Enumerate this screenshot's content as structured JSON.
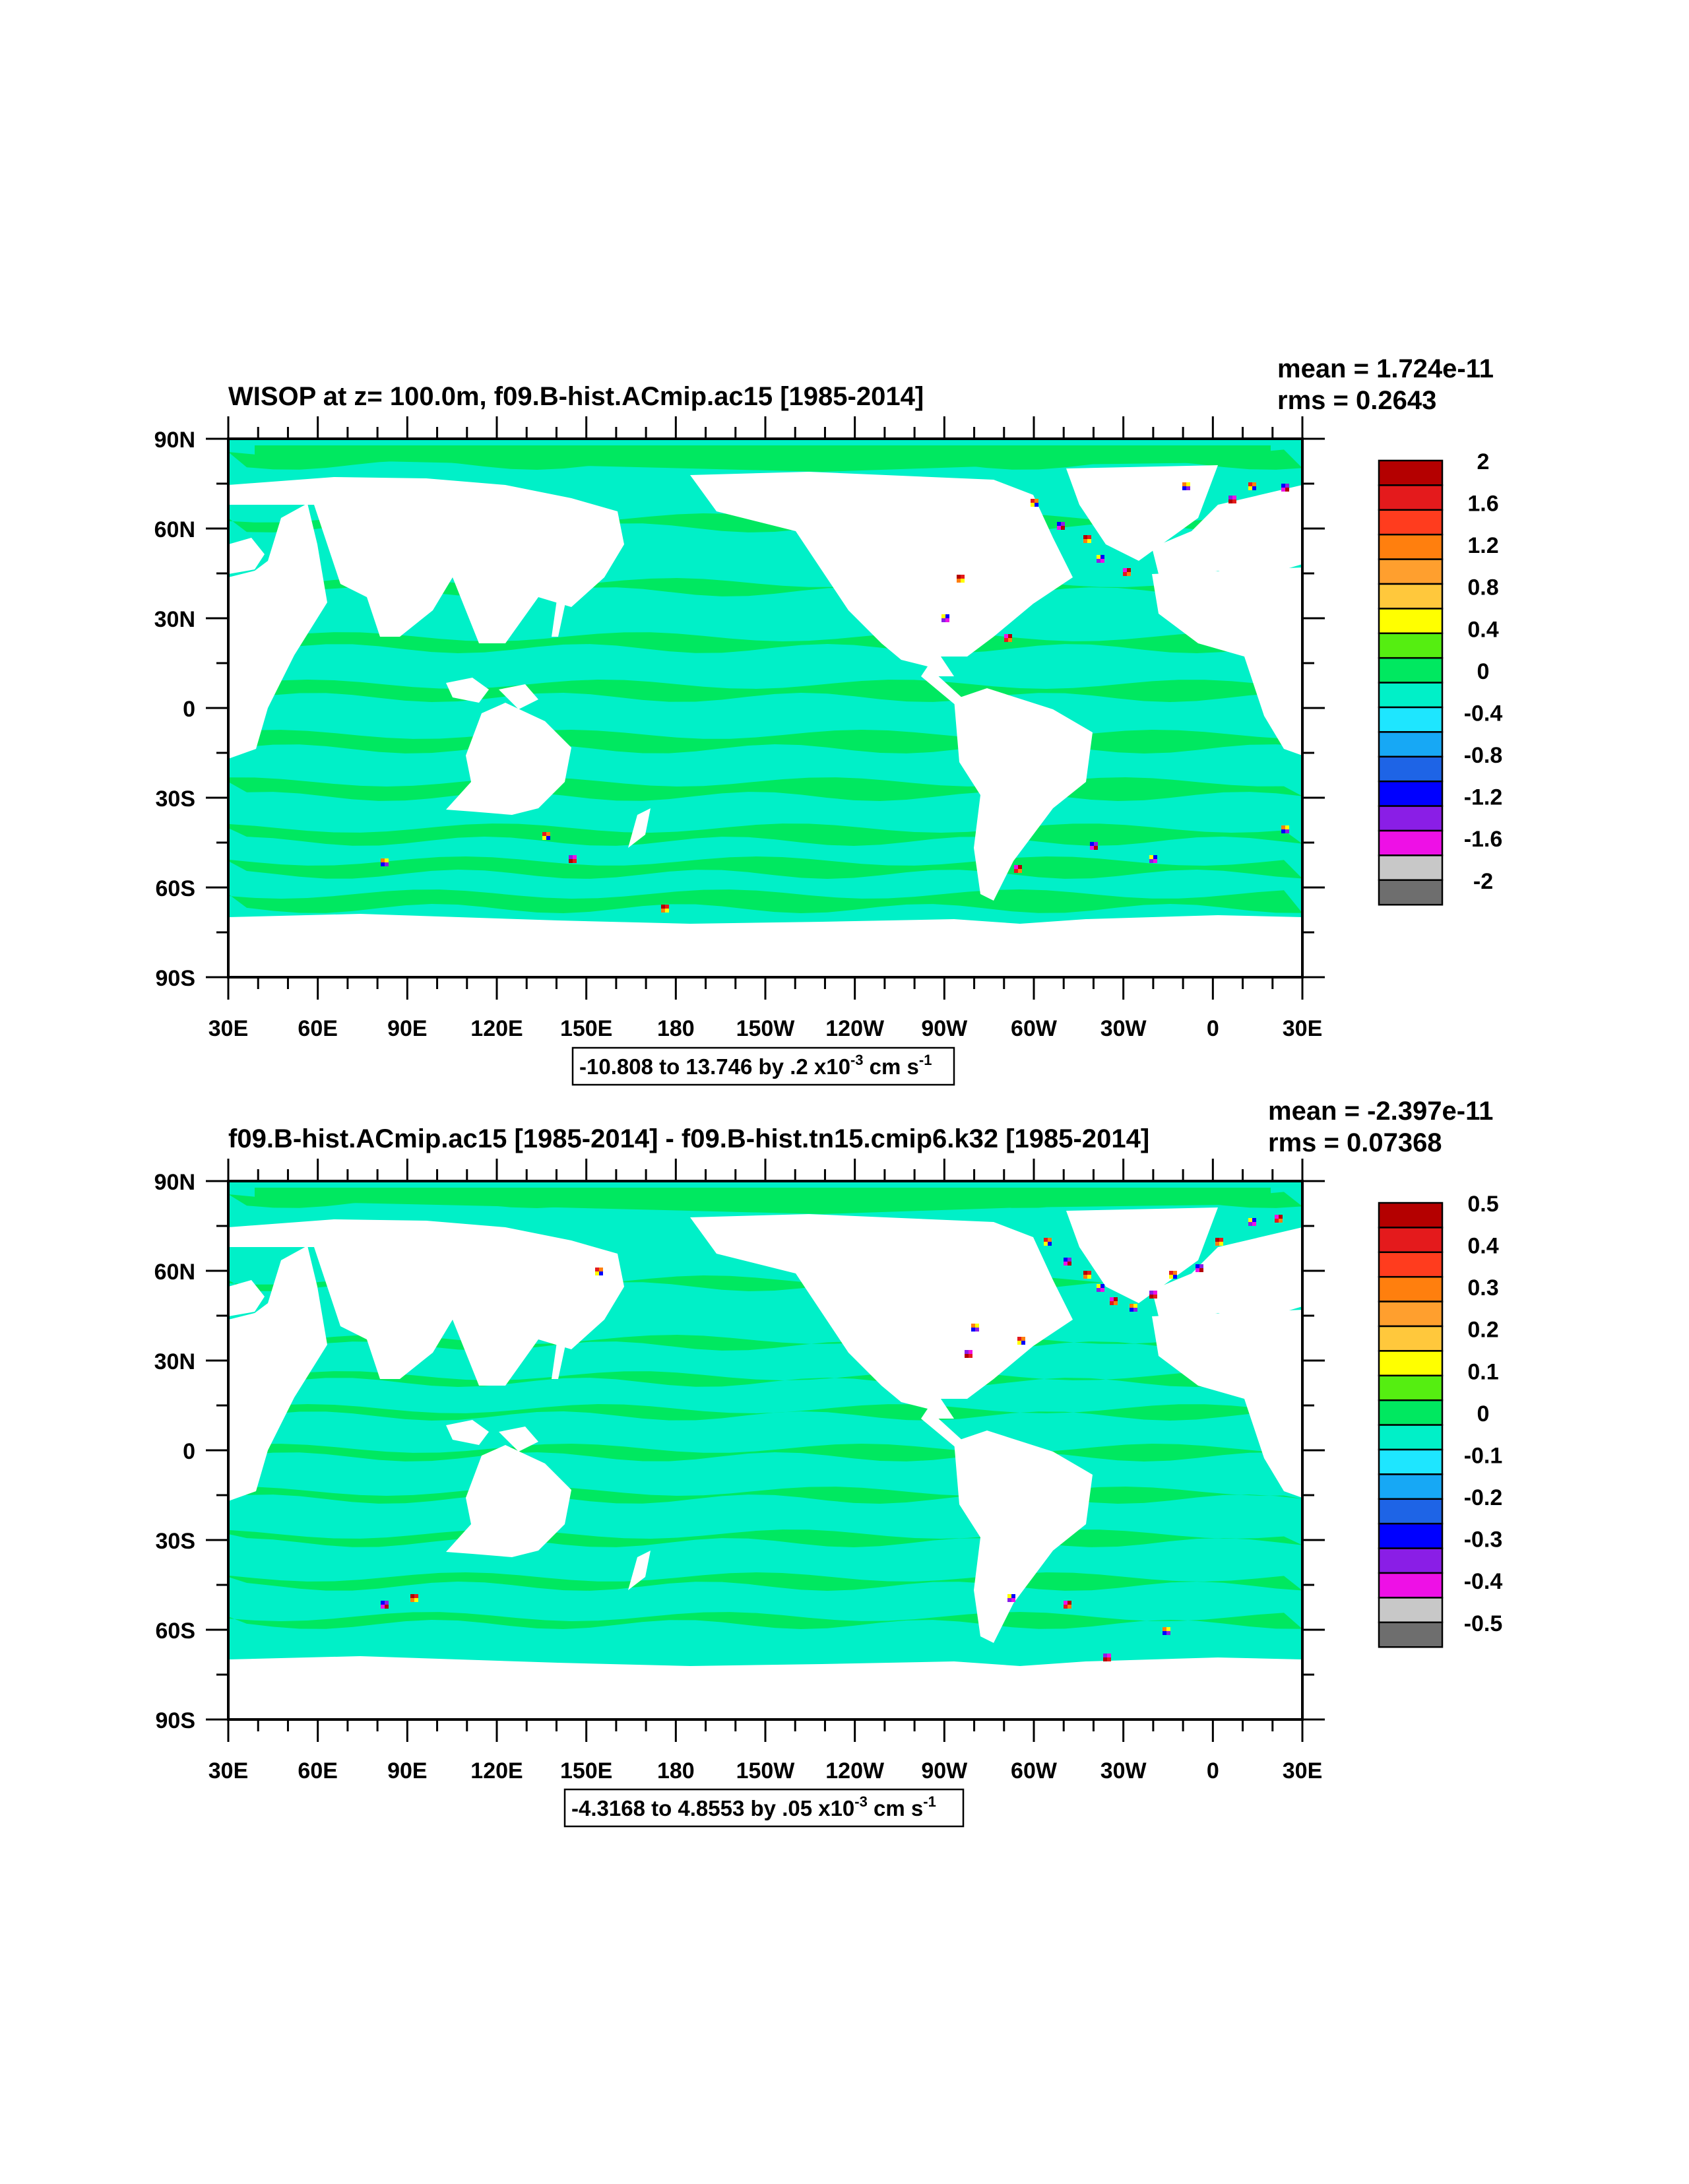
{
  "panels": [
    {
      "title": "WISOP at z= 100.0m, f09.B-hist.ACmip.ac15 [1985-2014]",
      "stats": {
        "mean": "mean = 1.724e-11",
        "rms": "rms = 0.2643"
      },
      "range_text": "-10.808 to 13.746 by .2 x10",
      "range_exp": "-3",
      "range_unit": " cm s",
      "range_unit_exp": "-1",
      "colorbar_labels": [
        "2",
        "1.6",
        "1.2",
        "0.8",
        "0.4",
        "0",
        "-0.4",
        "-0.8",
        "-1.2",
        "-1.6",
        "-2"
      ]
    },
    {
      "title": "f09.B-hist.ACmip.ac15 [1985-2014] - f09.B-hist.tn15.cmip6.k32 [1985-2014]",
      "stats": {
        "mean": "mean = -2.397e-11",
        "rms": "rms = 0.07368"
      },
      "range_text": "-4.3168 to 4.8553 by .05 x10",
      "range_exp": "-3",
      "range_unit": " cm s",
      "range_unit_exp": "-1",
      "colorbar_labels": [
        "0.5",
        "0.4",
        "0.3",
        "0.2",
        "0.1",
        "0",
        "-0.1",
        "-0.2",
        "-0.3",
        "-0.4",
        "-0.5"
      ]
    }
  ],
  "axes": {
    "lat_labels": [
      "90N",
      "60N",
      "30N",
      "0",
      "30S",
      "60S",
      "90S"
    ],
    "lon_labels": [
      "30E",
      "60E",
      "90E",
      "120E",
      "150E",
      "180",
      "150W",
      "120W",
      "90W",
      "60W",
      "30W",
      "0",
      "30E"
    ]
  },
  "colors": {
    "palette_top_to_bottom": [
      "#b40000",
      "#e41a1c",
      "#ff3c1e",
      "#ff7f0e",
      "#ff9f2e",
      "#ffc83c",
      "#ffff00",
      "#55ee11",
      "#00e860",
      "#00f0c8",
      "#1ee6ff",
      "#17a8f5",
      "#1e64e6",
      "#0000ff",
      "#8a1ee6",
      "#ee10e6",
      "#c8c8c8",
      "#6e6e6e"
    ],
    "ocean_main": "#00f0c8",
    "ocean_band": "#00e860"
  }
}
